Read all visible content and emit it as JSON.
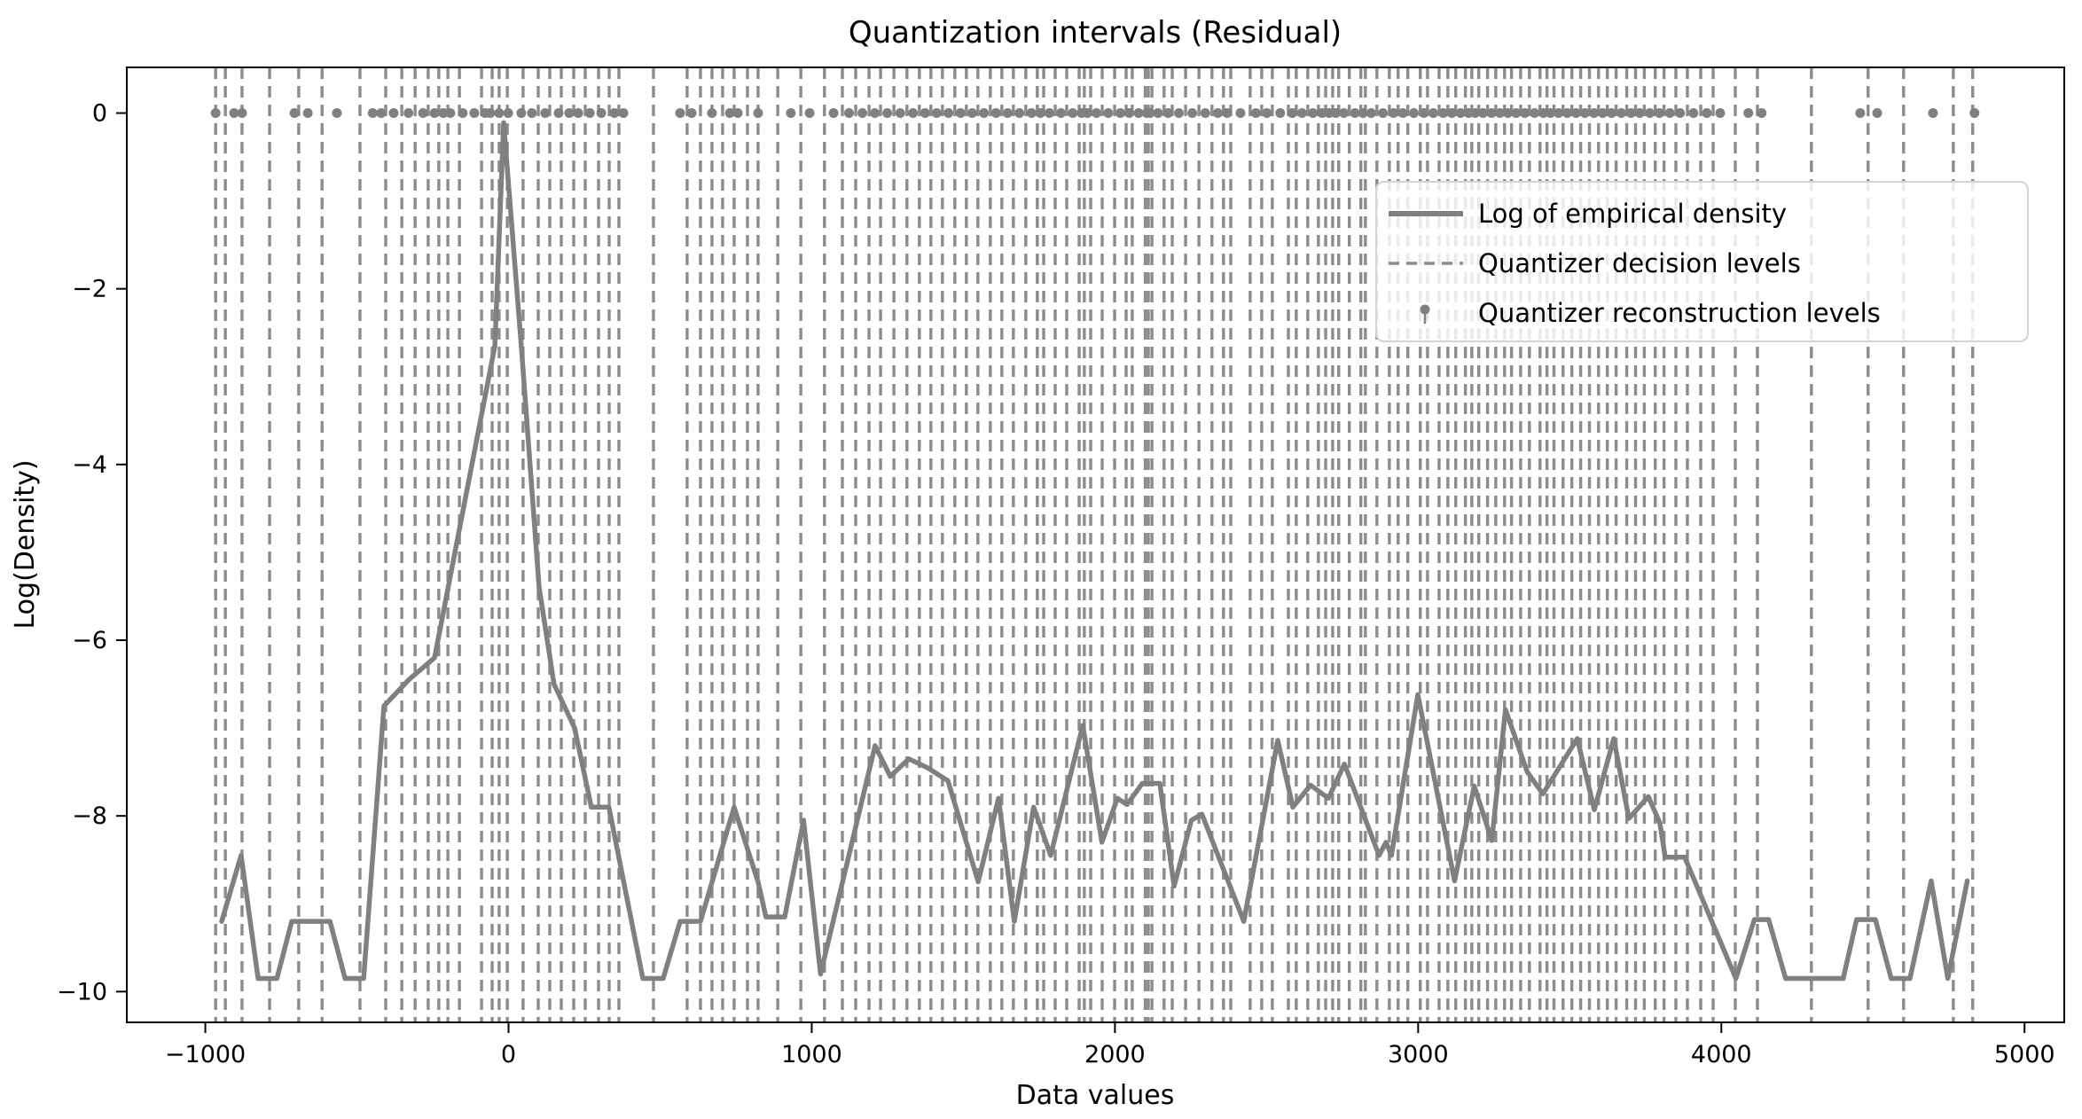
{
  "figure": {
    "background": "#ffffff"
  },
  "chart_data": {
    "type": "line",
    "title": "Quantization intervals (Residual)",
    "xlabel": "Data values",
    "ylabel": "Log(Density)",
    "xlim": [
      -1259,
      5131
    ],
    "ylim": [
      -10.35,
      0.52
    ],
    "grid": false,
    "x_ticks": [
      {
        "value": -1000,
        "label": "−1000"
      },
      {
        "value": 0,
        "label": "0"
      },
      {
        "value": 1000,
        "label": "1000"
      },
      {
        "value": 2000,
        "label": "2000"
      },
      {
        "value": 3000,
        "label": "3000"
      },
      {
        "value": 4000,
        "label": "4000"
      },
      {
        "value": 5000,
        "label": "5000"
      }
    ],
    "y_ticks": [
      {
        "value": 0,
        "label": "0"
      },
      {
        "value": -2,
        "label": "−2"
      },
      {
        "value": -4,
        "label": "−4"
      },
      {
        "value": -6,
        "label": "−6"
      },
      {
        "value": -8,
        "label": "−8"
      },
      {
        "value": -10,
        "label": "−10"
      }
    ],
    "legend": {
      "position": "upper right",
      "entries": [
        {
          "label": "Log of empirical density",
          "type": "solid-line"
        },
        {
          "label": "Quantizer decision levels",
          "type": "dashed-line"
        },
        {
          "label": "Quantizer reconstruction levels",
          "type": "dot-marker"
        }
      ]
    },
    "colors": {
      "density_line": "#808080",
      "decision_lines": "#8c8c8c",
      "reconstruction_dots": "#808080",
      "spine": "#000000",
      "text": "#000000",
      "legend_border": "#d4d4d4"
    },
    "series": [
      {
        "name": "Log of empirical density",
        "type": "line",
        "color": "#808080",
        "points": [
          [
            -946,
            -9.2
          ],
          [
            -882,
            -8.45
          ],
          [
            -826,
            -9.85
          ],
          [
            -764,
            -9.85
          ],
          [
            -715,
            -9.2
          ],
          [
            -589,
            -9.2
          ],
          [
            -539,
            -9.85
          ],
          [
            -478,
            -9.85
          ],
          [
            -411,
            -6.75
          ],
          [
            -329,
            -6.45
          ],
          [
            -244,
            -6.2
          ],
          [
            -160,
            -4.7
          ],
          [
            -45,
            -2.65
          ],
          [
            -16,
            -0.11
          ],
          [
            42,
            -2.65
          ],
          [
            101,
            -5.4
          ],
          [
            150,
            -6.5
          ],
          [
            218,
            -7.0
          ],
          [
            273,
            -7.9
          ],
          [
            331,
            -7.9
          ],
          [
            443,
            -9.85
          ],
          [
            510,
            -9.85
          ],
          [
            566,
            -9.2
          ],
          [
            633,
            -9.2
          ],
          [
            744,
            -7.9
          ],
          [
            823,
            -8.75
          ],
          [
            849,
            -9.15
          ],
          [
            911,
            -9.15
          ],
          [
            973,
            -8.05
          ],
          [
            1029,
            -9.8
          ],
          [
            1209,
            -7.2
          ],
          [
            1259,
            -7.55
          ],
          [
            1320,
            -7.35
          ],
          [
            1381,
            -7.45
          ],
          [
            1449,
            -7.6
          ],
          [
            1549,
            -8.75
          ],
          [
            1616,
            -7.8
          ],
          [
            1668,
            -9.2
          ],
          [
            1732,
            -7.9
          ],
          [
            1788,
            -8.45
          ],
          [
            1894,
            -6.97
          ],
          [
            1957,
            -8.3
          ],
          [
            2008,
            -7.8
          ],
          [
            2040,
            -7.87
          ],
          [
            2090,
            -7.63
          ],
          [
            2148,
            -7.63
          ],
          [
            2195,
            -8.8
          ],
          [
            2252,
            -8.05
          ],
          [
            2287,
            -7.98
          ],
          [
            2425,
            -9.2
          ],
          [
            2537,
            -7.14
          ],
          [
            2587,
            -7.9
          ],
          [
            2645,
            -7.65
          ],
          [
            2704,
            -7.8
          ],
          [
            2757,
            -7.41
          ],
          [
            2871,
            -8.45
          ],
          [
            2894,
            -8.3
          ],
          [
            2912,
            -8.45
          ],
          [
            2999,
            -6.62
          ],
          [
            3120,
            -8.74
          ],
          [
            3185,
            -7.66
          ],
          [
            3243,
            -8.28
          ],
          [
            3288,
            -6.79
          ],
          [
            3360,
            -7.5
          ],
          [
            3411,
            -7.75
          ],
          [
            3525,
            -7.12
          ],
          [
            3581,
            -7.93
          ],
          [
            3645,
            -7.12
          ],
          [
            3695,
            -8.03
          ],
          [
            3759,
            -7.78
          ],
          [
            3797,
            -8.08
          ],
          [
            3815,
            -8.47
          ],
          [
            3879,
            -8.47
          ],
          [
            4048,
            -9.85
          ],
          [
            4109,
            -9.18
          ],
          [
            4156,
            -9.18
          ],
          [
            4212,
            -9.85
          ],
          [
            4402,
            -9.85
          ],
          [
            4446,
            -9.18
          ],
          [
            4508,
            -9.18
          ],
          [
            4560,
            -9.85
          ],
          [
            4622,
            -9.85
          ],
          [
            4692,
            -8.74
          ],
          [
            4747,
            -9.85
          ],
          [
            4811,
            -8.74
          ]
        ]
      },
      {
        "name": "Quantizer decision levels",
        "type": "vlines",
        "color": "#8c8c8c",
        "x": [
          -966,
          -934,
          -879,
          -788,
          -692,
          -615,
          -490,
          -405,
          -352,
          -308,
          -265,
          -230,
          -200,
          -162,
          -89,
          -54,
          -31,
          -4,
          48,
          98,
          136,
          174,
          215,
          253,
          297,
          332,
          364,
          478,
          589,
          633,
          671,
          706,
          744,
          788,
          823,
          888,
          964,
          1042,
          1101,
          1145,
          1189,
          1227,
          1271,
          1314,
          1355,
          1393,
          1431,
          1472,
          1510,
          1548,
          1589,
          1627,
          1665,
          1706,
          1744,
          1765,
          1803,
          1841,
          1882,
          1899,
          1920,
          1958,
          1999,
          2037,
          2057,
          2100,
          2110,
          2122,
          2162,
          2189,
          2233,
          2277,
          2320,
          2358,
          2382,
          2446,
          2484,
          2519,
          2572,
          2598,
          2636,
          2671,
          2695,
          2718,
          2738,
          2773,
          2811,
          2826,
          2864,
          2905,
          2934,
          2966,
          3007,
          3031,
          3069,
          3098,
          3124,
          3156,
          3177,
          3200,
          3229,
          3256,
          3285,
          3308,
          3338,
          3367,
          3402,
          3425,
          3448,
          3478,
          3507,
          3536,
          3565,
          3595,
          3624,
          3653,
          3688,
          3717,
          3746,
          3782,
          3811,
          3850,
          3888,
          3932,
          3973,
          4046,
          4119,
          4297,
          4484,
          4601,
          4765,
          4829
        ]
      },
      {
        "name": "Quantizer reconstruction levels",
        "type": "dots",
        "color": "#808080",
        "y": 0,
        "x": [
          -966,
          -905,
          -879,
          -706,
          -662,
          -566,
          -448,
          -420,
          -379,
          -330,
          -282,
          -244,
          -215,
          -192,
          -151,
          -113,
          -77,
          -60,
          -31,
          -1,
          42,
          77,
          121,
          165,
          200,
          230,
          268,
          306,
          349,
          379,
          566,
          604,
          671,
          730,
          756,
          823,
          931,
          993,
          1072,
          1123,
          1167,
          1208,
          1249,
          1292,
          1334,
          1374,
          1412,
          1451,
          1491,
          1529,
          1568,
          1608,
          1646,
          1685,
          1725,
          1754,
          1784,
          1822,
          1861,
          1890,
          1909,
          1939,
          1978,
          2018,
          2047,
          2078,
          2105,
          2116,
          2142,
          2175,
          2211,
          2255,
          2298,
          2339,
          2370,
          2414,
          2465,
          2501,
          2545,
          2585,
          2617,
          2653,
          2683,
          2706,
          2728,
          2755,
          2792,
          2818,
          2845,
          2884,
          2919,
          2950,
          2986,
          3019,
          3050,
          3083,
          3111,
          3140,
          3166,
          3188,
          3214,
          3242,
          3270,
          3296,
          3323,
          3352,
          3384,
          3413,
          3436,
          3463,
          3492,
          3521,
          3550,
          3580,
          3609,
          3638,
          3670,
          3702,
          3731,
          3764,
          3796,
          3830,
          3864,
          3908,
          3952,
          3996,
          4089,
          4133,
          4458,
          4514,
          4698,
          4835
        ]
      }
    ]
  }
}
